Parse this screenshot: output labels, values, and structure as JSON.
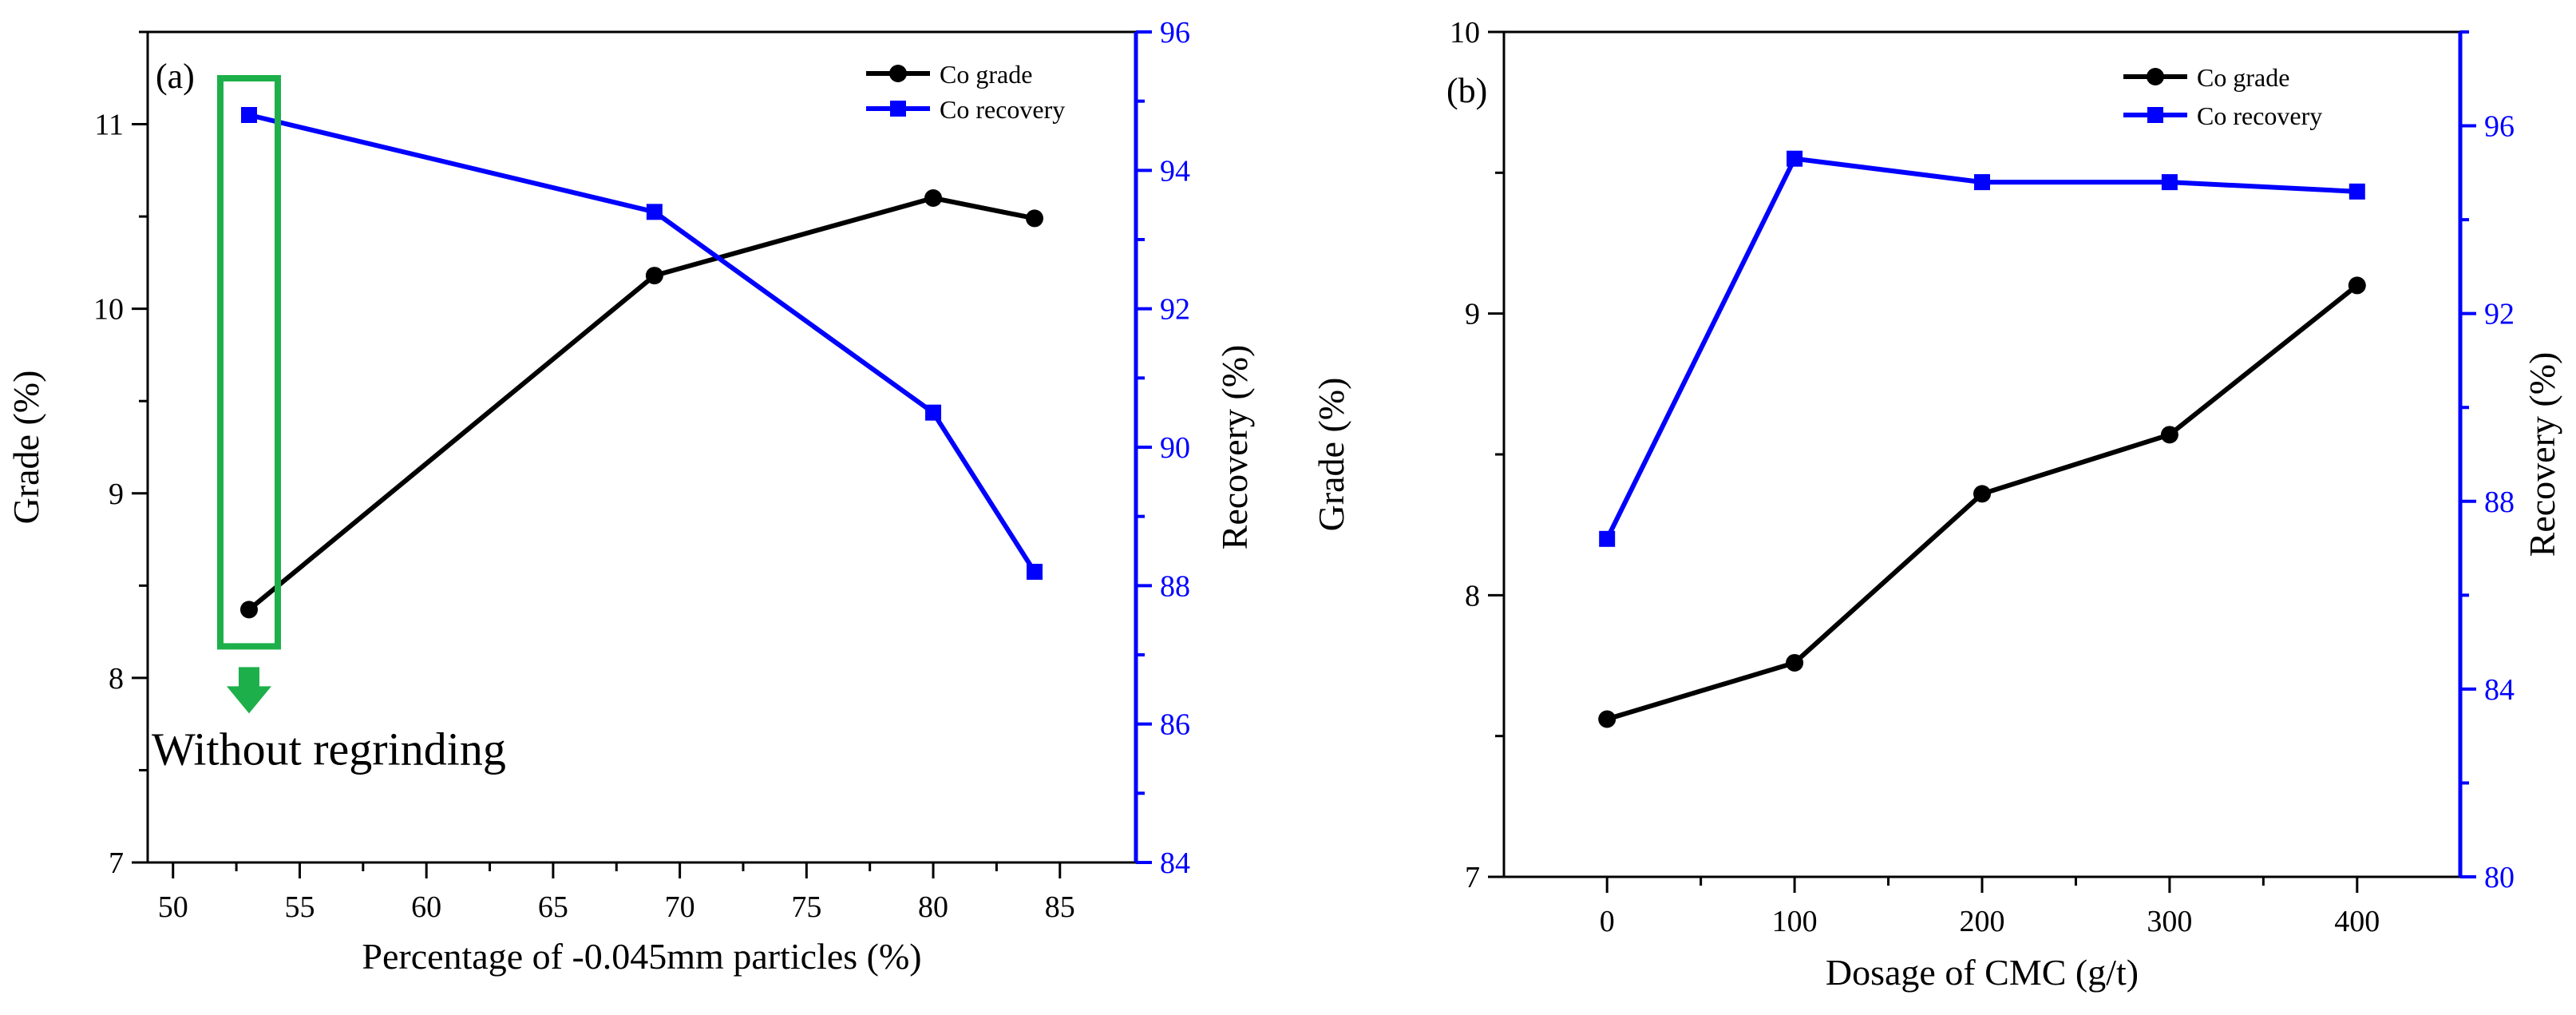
{
  "colors": {
    "grade": "#000000",
    "recovery": "#0000ff",
    "highlight": "#1db04a",
    "axis": "#000000"
  },
  "chart_data": [
    {
      "type": "line",
      "panel_label": "(a)",
      "xlabel": "Percentage of -0.045mm particles (%)",
      "ylabel_left": "Grade (%)",
      "ylabel_right": "Recovery (%)",
      "x": [
        53,
        69,
        80,
        84
      ],
      "xlim": [
        49,
        88
      ],
      "xticks": [
        50,
        55,
        60,
        65,
        70,
        75,
        80,
        85
      ],
      "ylim_left": [
        7,
        11.5
      ],
      "yticks_left": [
        7,
        8,
        9,
        10,
        11
      ],
      "ylim_right": [
        84,
        96
      ],
      "yticks_right": [
        84,
        86,
        88,
        90,
        92,
        94,
        96
      ],
      "series": [
        {
          "name": "Co grade",
          "axis": "left",
          "marker": "circle",
          "values": [
            8.37,
            10.18,
            10.6,
            10.49
          ]
        },
        {
          "name": "Co recovery",
          "axis": "right",
          "marker": "square",
          "values": [
            94.8,
            93.4,
            90.5,
            88.2
          ]
        }
      ],
      "legend_position": "top-right",
      "annotation": {
        "text": "Without regrinding",
        "highlight_x": 53
      }
    },
    {
      "type": "line",
      "panel_label": "(b)",
      "xlabel": "Dosage of CMC (g/t)",
      "ylabel_left": "Grade (%)",
      "ylabel_right": "Recovery (%)",
      "x": [
        0,
        100,
        200,
        300,
        400
      ],
      "xlim": [
        -55,
        455
      ],
      "xticks": [
        0,
        100,
        200,
        300,
        400
      ],
      "ylim_left": [
        7,
        10
      ],
      "yticks_left": [
        7,
        8,
        9,
        10
      ],
      "ylim_right": [
        80,
        98
      ],
      "yticks_right": [
        80,
        84,
        88,
        92,
        96
      ],
      "series": [
        {
          "name": "Co grade",
          "axis": "left",
          "marker": "circle",
          "values": [
            7.56,
            7.76,
            8.36,
            8.57,
            9.1
          ]
        },
        {
          "name": "Co recovery",
          "axis": "right",
          "marker": "square",
          "values": [
            87.2,
            95.3,
            94.8,
            94.8,
            94.6
          ]
        }
      ],
      "legend_position": "top-right"
    }
  ]
}
